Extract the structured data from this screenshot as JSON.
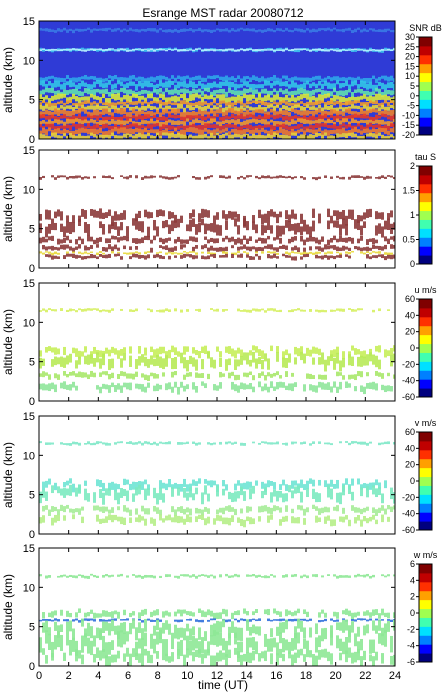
{
  "title": "Esrange MST radar 20080712",
  "xlabel": "time (UT)",
  "x_ticks": [
    "0",
    "2",
    "4",
    "6",
    "8",
    "10",
    "12",
    "14",
    "16",
    "18",
    "20",
    "22",
    "24"
  ],
  "chart_data": [
    {
      "type": "heatmap",
      "variable": "SNR",
      "colorbar_label": "SNR dB",
      "ylabel": "altitude (km)",
      "xlim": [
        0,
        24
      ],
      "ylim": [
        0,
        15
      ],
      "y_ticks": [
        "0",
        "5",
        "10",
        "15"
      ],
      "clim": [
        -20,
        30
      ],
      "colorbar_ticks": [
        "30",
        "25",
        "20",
        "15",
        "10",
        "5",
        "0",
        "-5",
        "-10",
        "-15",
        "-20"
      ],
      "background": "#2f3bd6",
      "bands": [
        {
          "y": 11.3,
          "thick": 0.35,
          "color": "#3fc8ee"
        },
        {
          "y": 11.3,
          "thick": 0.12,
          "color": "#b9f3ff"
        },
        {
          "y": 13.8,
          "thick": 0.4,
          "color": "#3a7be6"
        },
        {
          "y": 7.6,
          "thick": 0.6,
          "color": "#2fa6ea"
        },
        {
          "y": 6.8,
          "thick": 0.8,
          "color": "#32c7e8"
        },
        {
          "y": 5.9,
          "thick": 0.7,
          "color": "#5fe0b0"
        },
        {
          "y": 5.1,
          "thick": 0.8,
          "color": "#d8e83a"
        },
        {
          "y": 4.5,
          "thick": 0.5,
          "color": "#f29b2b"
        },
        {
          "y": 3.9,
          "thick": 0.6,
          "color": "#e8d83a"
        },
        {
          "y": 3.3,
          "thick": 0.7,
          "color": "#f0822a"
        },
        {
          "y": 2.7,
          "thick": 0.6,
          "color": "#e83a26"
        },
        {
          "y": 2.1,
          "thick": 0.6,
          "color": "#f39a2a"
        },
        {
          "y": 1.5,
          "thick": 0.6,
          "color": "#e2352b"
        },
        {
          "y": 0.9,
          "thick": 0.7,
          "color": "#f07a2a"
        },
        {
          "y": 0.3,
          "thick": 0.6,
          "color": "#e8d23a"
        }
      ]
    },
    {
      "type": "heatmap",
      "variable": "tau",
      "colorbar_label": "tau S",
      "ylabel": "altitude (km)",
      "xlim": [
        0,
        24
      ],
      "ylim": [
        0,
        15
      ],
      "y_ticks": [
        "0",
        "5",
        "10",
        "15"
      ],
      "clim": [
        0,
        2
      ],
      "colorbar_ticks": [
        "2",
        "1.5",
        "1",
        "0.5",
        "0"
      ],
      "background": "#ffffff",
      "bands": [
        {
          "y": 11.5,
          "thick": 0.35,
          "color": "#8c3a3a"
        },
        {
          "y": 6.5,
          "thick": 1.2,
          "color": "#8c3a3a"
        },
        {
          "y": 5.1,
          "thick": 1.4,
          "color": "#8c3a3a"
        },
        {
          "y": 3.5,
          "thick": 0.7,
          "color": "#8c3a3a"
        },
        {
          "y": 2.5,
          "thick": 0.6,
          "color": "#8c3a3a"
        },
        {
          "y": 1.9,
          "thick": 0.3,
          "color": "#e8d83a"
        },
        {
          "y": 1.4,
          "thick": 0.5,
          "color": "#8c3a3a"
        }
      ]
    },
    {
      "type": "heatmap",
      "variable": "u",
      "colorbar_label": "u m/s",
      "ylabel": "altitude (km)",
      "xlim": [
        0,
        24
      ],
      "ylim": [
        0,
        15
      ],
      "y_ticks": [
        "0",
        "5",
        "10",
        "15"
      ],
      "clim": [
        -60,
        60
      ],
      "colorbar_ticks": [
        "60",
        "40",
        "20",
        "0",
        "-20",
        "-40",
        "-60"
      ],
      "background": "#ffffff",
      "bands": [
        {
          "y": 11.5,
          "thick": 0.35,
          "color": "#d6f060"
        },
        {
          "y": 6.2,
          "thick": 1.0,
          "color": "#c6ee5a"
        },
        {
          "y": 5.0,
          "thick": 1.4,
          "color": "#b8ea58"
        },
        {
          "y": 3.2,
          "thick": 0.7,
          "color": "#a9e86a"
        },
        {
          "y": 1.7,
          "thick": 0.9,
          "color": "#8fe69a"
        }
      ]
    },
    {
      "type": "heatmap",
      "variable": "v",
      "colorbar_label": "v m/s",
      "ylabel": "altitude (km)",
      "xlim": [
        0,
        24
      ],
      "ylim": [
        0,
        15
      ],
      "y_ticks": [
        "0",
        "5",
        "10",
        "15"
      ],
      "clim": [
        -60,
        60
      ],
      "colorbar_ticks": [
        "60",
        "40",
        "20",
        "0",
        "-20",
        "-40",
        "-60"
      ],
      "background": "#ffffff",
      "bands": [
        {
          "y": 11.5,
          "thick": 0.35,
          "color": "#7ee8c8"
        },
        {
          "y": 6.2,
          "thick": 1.0,
          "color": "#6fe4d4"
        },
        {
          "y": 5.0,
          "thick": 1.4,
          "color": "#7ceac0"
        },
        {
          "y": 3.0,
          "thick": 0.8,
          "color": "#a6ec98"
        },
        {
          "y": 1.7,
          "thick": 0.9,
          "color": "#b6ee88"
        }
      ]
    },
    {
      "type": "heatmap",
      "variable": "w",
      "colorbar_label": "w m/s",
      "ylabel": "altitude (km)",
      "xlim": [
        0,
        24
      ],
      "ylim": [
        0,
        15
      ],
      "y_ticks": [
        "0",
        "5",
        "10",
        "15"
      ],
      "clim": [
        -6,
        6
      ],
      "colorbar_ticks": [
        "6",
        "4",
        "2",
        "0",
        "-2",
        "-4",
        "-6"
      ],
      "background": "#ffffff",
      "bands": [
        {
          "y": 11.4,
          "thick": 0.35,
          "color": "#8ee896"
        },
        {
          "y": 6.6,
          "thick": 0.8,
          "color": "#8ee896"
        },
        {
          "y": 5.8,
          "thick": 0.3,
          "color": "#2f6fdc"
        },
        {
          "y": 4.6,
          "thick": 1.6,
          "color": "#8ee896"
        },
        {
          "y": 2.8,
          "thick": 2.0,
          "color": "#8ee896"
        },
        {
          "y": 1.1,
          "thick": 1.4,
          "color": "#8ee896"
        }
      ]
    }
  ]
}
